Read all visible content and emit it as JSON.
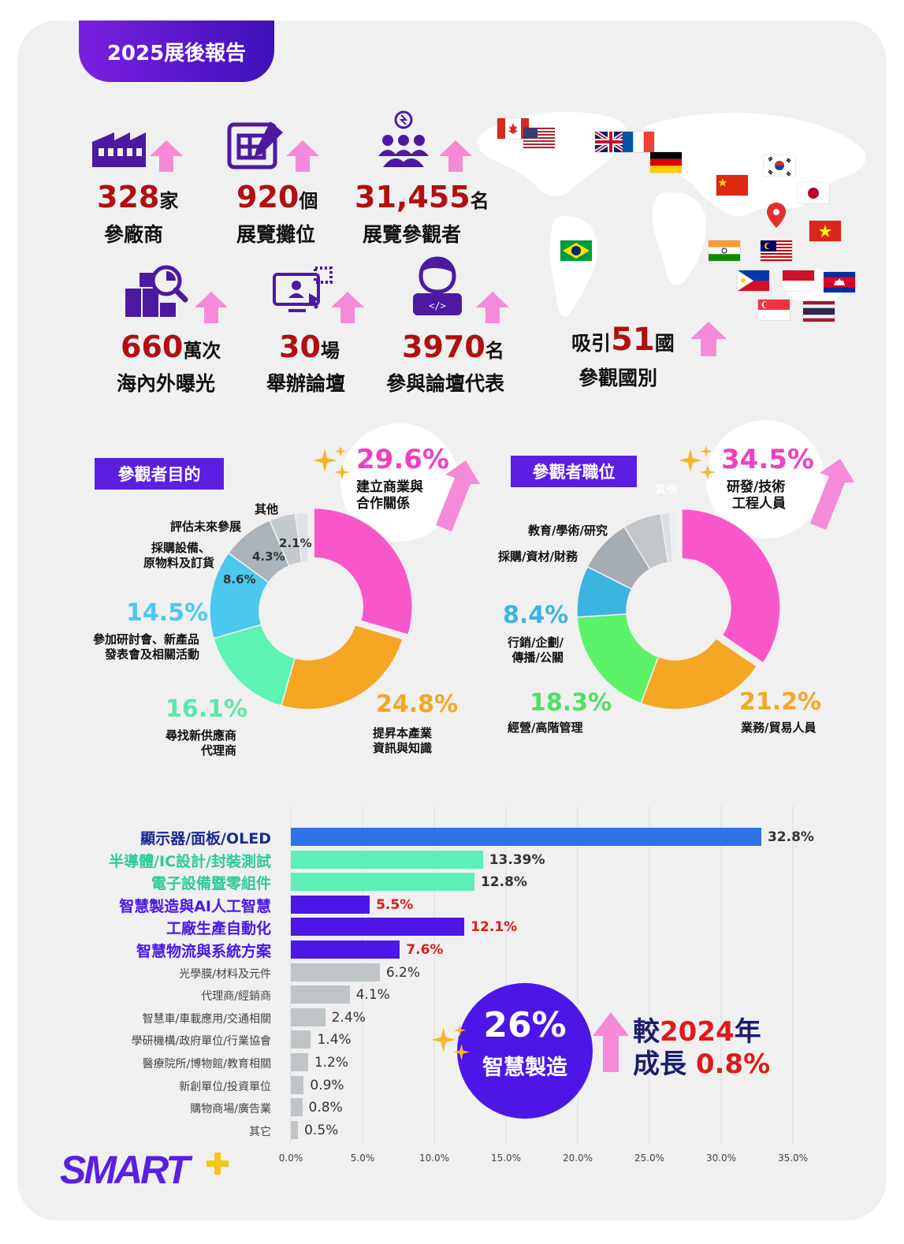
{
  "header": {
    "title": "2025展後報告"
  },
  "stats": [
    {
      "value": "328",
      "unit": "家",
      "label": "參廠商",
      "icon": "factory-icon"
    },
    {
      "value": "920",
      "unit": "個",
      "label": "展覽攤位",
      "icon": "blueprint-icon"
    },
    {
      "value": "31,455",
      "unit": "名",
      "label": "展覽參觀者",
      "icon": "people-idea-icon"
    },
    {
      "value": "660",
      "unit": "萬次",
      "label": "海內外曝光",
      "icon": "boxes-search-icon"
    },
    {
      "value": "30",
      "unit": "場",
      "label": "舉辦論壇",
      "icon": "online-meeting-icon"
    },
    {
      "value": "3970",
      "unit": "名",
      "label": "參與論壇代表",
      "icon": "developer-icon"
    }
  ],
  "countries": {
    "prefix": "吸引",
    "value": "51",
    "unit": "國",
    "label": "參觀國別"
  },
  "flags": [
    "canada",
    "usa",
    "uk",
    "france",
    "germany",
    "korea",
    "china",
    "japan",
    "vietnam",
    "brazil",
    "india",
    "malaysia",
    "philippines",
    "indonesia",
    "cambodia",
    "singapore",
    "thailand"
  ],
  "purpose": {
    "tag": "參觀者目的",
    "highlight": {
      "value": "29.6%",
      "label_line1": "建立商業與",
      "label_line2": "合作關係"
    }
  },
  "position": {
    "tag": "參觀者職位",
    "highlight": {
      "value": "34.5%",
      "label_line1": "研發/技術",
      "label_line2": "工程人員"
    }
  },
  "badge": {
    "value": "26%",
    "label": "智慧製造",
    "growth_prefix": "較",
    "growth_year": "2024",
    "growth_year_suffix": "年",
    "growth_label": "成長",
    "growth_value": "0.8%"
  },
  "logo": {
    "text": "SMART"
  },
  "chart_data": [
    {
      "type": "pie",
      "title": "參觀者目的",
      "slices": [
        {
          "label": "建立商業與合作關係",
          "value": 29.6,
          "value_label": "29.6%",
          "color": "#f757c8"
        },
        {
          "label": "提昇本產業資訊與知識",
          "value": 24.8,
          "value_label": "24.8%",
          "color": "#f5a623"
        },
        {
          "label": "尋找新供應商代理商",
          "value": 16.1,
          "value_label": "16.1%",
          "color": "#5cf3b4"
        },
        {
          "label": "參加研討會、新產品發表會及相關活動",
          "value": 14.5,
          "value_label": "14.5%",
          "color": "#4cc8ee"
        },
        {
          "label": "採購設備、原物料及訂貨",
          "value": 8.6,
          "value_label": "8.6%",
          "color": "#a9b3b9"
        },
        {
          "label": "評估未來參展",
          "value": 4.3,
          "value_label": "4.3%",
          "color": "#c4cbcf"
        },
        {
          "label": "其他",
          "value": 2.1,
          "value_label": "2.1%",
          "color": "#e0e3e5"
        }
      ]
    },
    {
      "type": "pie",
      "title": "參觀者職位",
      "slices": [
        {
          "label": "研發/技術工程人員",
          "value": 34.5,
          "value_label": "34.5%",
          "color": "#f757c8"
        },
        {
          "label": "業務/貿易人員",
          "value": 21.2,
          "value_label": "21.2%",
          "color": "#f5a623"
        },
        {
          "label": "經營/高階管理",
          "value": 18.3,
          "value_label": "18.3%",
          "color": "#5cf36a"
        },
        {
          "label": "行銷/企劃/傳播/公關",
          "value": 8.4,
          "value_label": "8.4%",
          "color": "#3cb4e0"
        },
        {
          "label": "採購/資材/財務",
          "value": 8.9,
          "value_label": "",
          "color": "#a6adb2"
        },
        {
          "label": "教育/學術/研究",
          "value": 6.3,
          "value_label": "",
          "color": "#c1c7ca"
        },
        {
          "label": "",
          "value": 1.5,
          "value_label": "",
          "color": "#dde0e2"
        },
        {
          "label": "其他",
          "value": 0.9,
          "value_label": "",
          "color": "#ecedef"
        }
      ]
    },
    {
      "type": "bar",
      "orientation": "horizontal",
      "xlim": [
        0,
        35
      ],
      "xticks": [
        "0.0%",
        "5.0%",
        "10.0%",
        "15.0%",
        "20.0%",
        "25.0%",
        "30.0%",
        "35.0%"
      ],
      "grid": true,
      "bars": [
        {
          "label": "顯示器/面板/OLED",
          "value": 32.8,
          "value_label": "32.8%",
          "color": "#2f72e8",
          "label_color": "#1a2a8f",
          "value_color": "#333",
          "emph": true
        },
        {
          "label": "半導體/IC設計/封裝測試",
          "value": 13.39,
          "value_label": "13.39%",
          "color": "#5cf0b6",
          "label_color": "#2ec99a",
          "value_color": "#333",
          "emph": true
        },
        {
          "label": "電子設備暨零組件",
          "value": 12.8,
          "value_label": "12.8%",
          "color": "#5cf0b6",
          "label_color": "#2ec99a",
          "value_color": "#333",
          "emph": true
        },
        {
          "label": "智慧製造與AI人工智慧",
          "value": 5.5,
          "value_label": "5.5%",
          "color": "#4b16e6",
          "label_color": "#4b16e6",
          "value_color": "#e01a1a",
          "emph": true
        },
        {
          "label": "工廠生產自動化",
          "value": 12.1,
          "value_label": "12.1%",
          "color": "#4b16e6",
          "label_color": "#4b16e6",
          "value_color": "#e01a1a",
          "emph": true
        },
        {
          "label": "智慧物流與系統方案",
          "value": 7.6,
          "value_label": "7.6%",
          "color": "#4b16e6",
          "label_color": "#4b16e6",
          "value_color": "#e01a1a",
          "emph": true
        },
        {
          "label": "光學膜/材料及元件",
          "value": 6.2,
          "value_label": "6.2%",
          "color": "#bfc4c7",
          "label_color": "#444",
          "value_color": "#333",
          "emph": false
        },
        {
          "label": "代理商/經銷商",
          "value": 4.1,
          "value_label": "4.1%",
          "color": "#bfc4c7",
          "label_color": "#444",
          "value_color": "#333",
          "emph": false
        },
        {
          "label": "智慧車/車載應用/交通相關",
          "value": 2.4,
          "value_label": "2.4%",
          "color": "#bfc4c7",
          "label_color": "#444",
          "value_color": "#333",
          "emph": false
        },
        {
          "label": "學研機構/政府單位/行業協會",
          "value": 1.4,
          "value_label": "1.4%",
          "color": "#bfc4c7",
          "label_color": "#444",
          "value_color": "#333",
          "emph": false
        },
        {
          "label": "醫療院所/博物館/教育相關",
          "value": 1.2,
          "value_label": "1.2%",
          "color": "#bfc4c7",
          "label_color": "#444",
          "value_color": "#333",
          "emph": false
        },
        {
          "label": "新創單位/投資單位",
          "value": 0.9,
          "value_label": "0.9%",
          "color": "#bfc4c7",
          "label_color": "#444",
          "value_color": "#333",
          "emph": false
        },
        {
          "label": "購物商場/廣告業",
          "value": 0.8,
          "value_label": "0.8%",
          "color": "#bfc4c7",
          "label_color": "#444",
          "value_color": "#333",
          "emph": false
        },
        {
          "label": "其它",
          "value": 0.5,
          "value_label": "0.5%",
          "color": "#bfc4c7",
          "label_color": "#444",
          "value_color": "#333",
          "emph": false
        }
      ]
    }
  ]
}
